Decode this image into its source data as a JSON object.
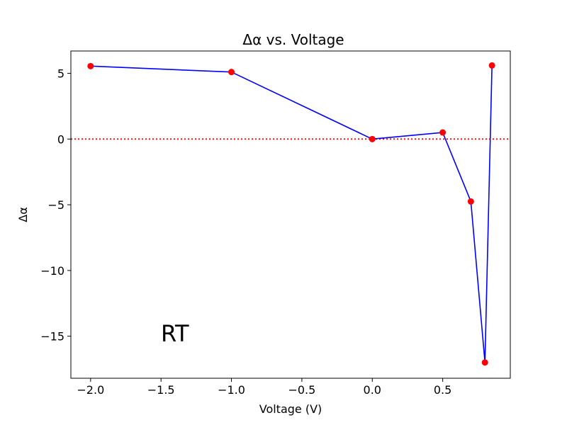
{
  "chart_data": {
    "type": "line",
    "title": "Δα vs. Voltage",
    "xlabel": "Voltage (V)",
    "ylabel": "Δα",
    "xlim": [
      -2.14,
      0.98
    ],
    "ylim": [
      -18.2,
      6.7
    ],
    "x_ticks": [
      -2.0,
      -1.5,
      -1.0,
      -0.5,
      0.0,
      0.5
    ],
    "x_tick_labels": [
      "−2.0",
      "−1.5",
      "−1.0",
      "−0.5",
      "0.0",
      "0.5"
    ],
    "y_ticks": [
      5,
      0,
      -5,
      -10,
      -15
    ],
    "y_tick_labels": [
      "5",
      "0",
      "−5",
      "−10",
      "−15"
    ],
    "grid": false,
    "series": [
      {
        "x": [
          -2.0,
          -1.0,
          0.0,
          0.5,
          0.7,
          0.8,
          0.85
        ],
        "y": [
          5.55,
          5.1,
          0.0,
          0.5,
          -4.75,
          -17.0,
          5.6
        ],
        "line_color": "#0000ff",
        "marker_color": "#ff0000"
      }
    ],
    "reference_line": {
      "y": 0,
      "color": "#ff0000",
      "style": "dotted"
    },
    "annotations": [
      {
        "text": "RT",
        "x": -1.4,
        "y": -14.8,
        "color": "#ff0000"
      }
    ]
  }
}
